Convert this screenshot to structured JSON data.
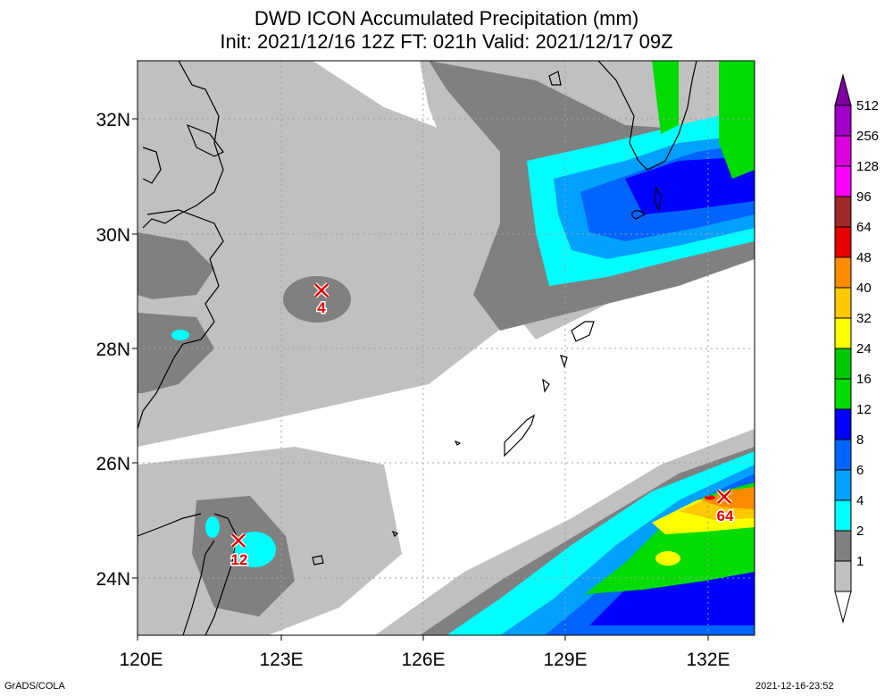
{
  "title": {
    "line1": "DWD ICON Accumulated Precipitation (mm)",
    "line2": "Init: 2021/12/16 12Z  FT: 021h  Valid: 2021/12/17 09Z"
  },
  "axes": {
    "lat_labels": [
      "32N",
      "30N",
      "28N",
      "26N",
      "24N"
    ],
    "lon_labels": [
      "120E",
      "123E",
      "126E",
      "129E",
      "132E"
    ],
    "lat_range": [
      23,
      33
    ],
    "lon_range": [
      120,
      133
    ]
  },
  "colorbar": {
    "levels": [
      "512",
      "256",
      "128",
      "96",
      "64",
      "48",
      "40",
      "32",
      "24",
      "16",
      "12",
      "8",
      "6",
      "4",
      "2",
      "1"
    ],
    "colors": [
      "#7d00a0",
      "#a000c8",
      "#dc00dc",
      "#ff00ff",
      "#a02828",
      "#e60000",
      "#ff8c00",
      "#ffc800",
      "#ffff00",
      "#00c800",
      "#00dc00",
      "#0000ff",
      "#0064ff",
      "#00a0ff",
      "#00ffff",
      "#808080",
      "#c0c0c0",
      "#ffffff"
    ]
  },
  "markers": [
    {
      "label": "4",
      "lat": 29.0,
      "lon": 123.9
    },
    {
      "label": "12",
      "lat": 24.6,
      "lon": 122.1
    },
    {
      "label": "64",
      "lat": 25.4,
      "lon": 132.3
    }
  ],
  "footer": {
    "left": "GrADS/COLA",
    "right": "2021-12-16-23:52"
  }
}
